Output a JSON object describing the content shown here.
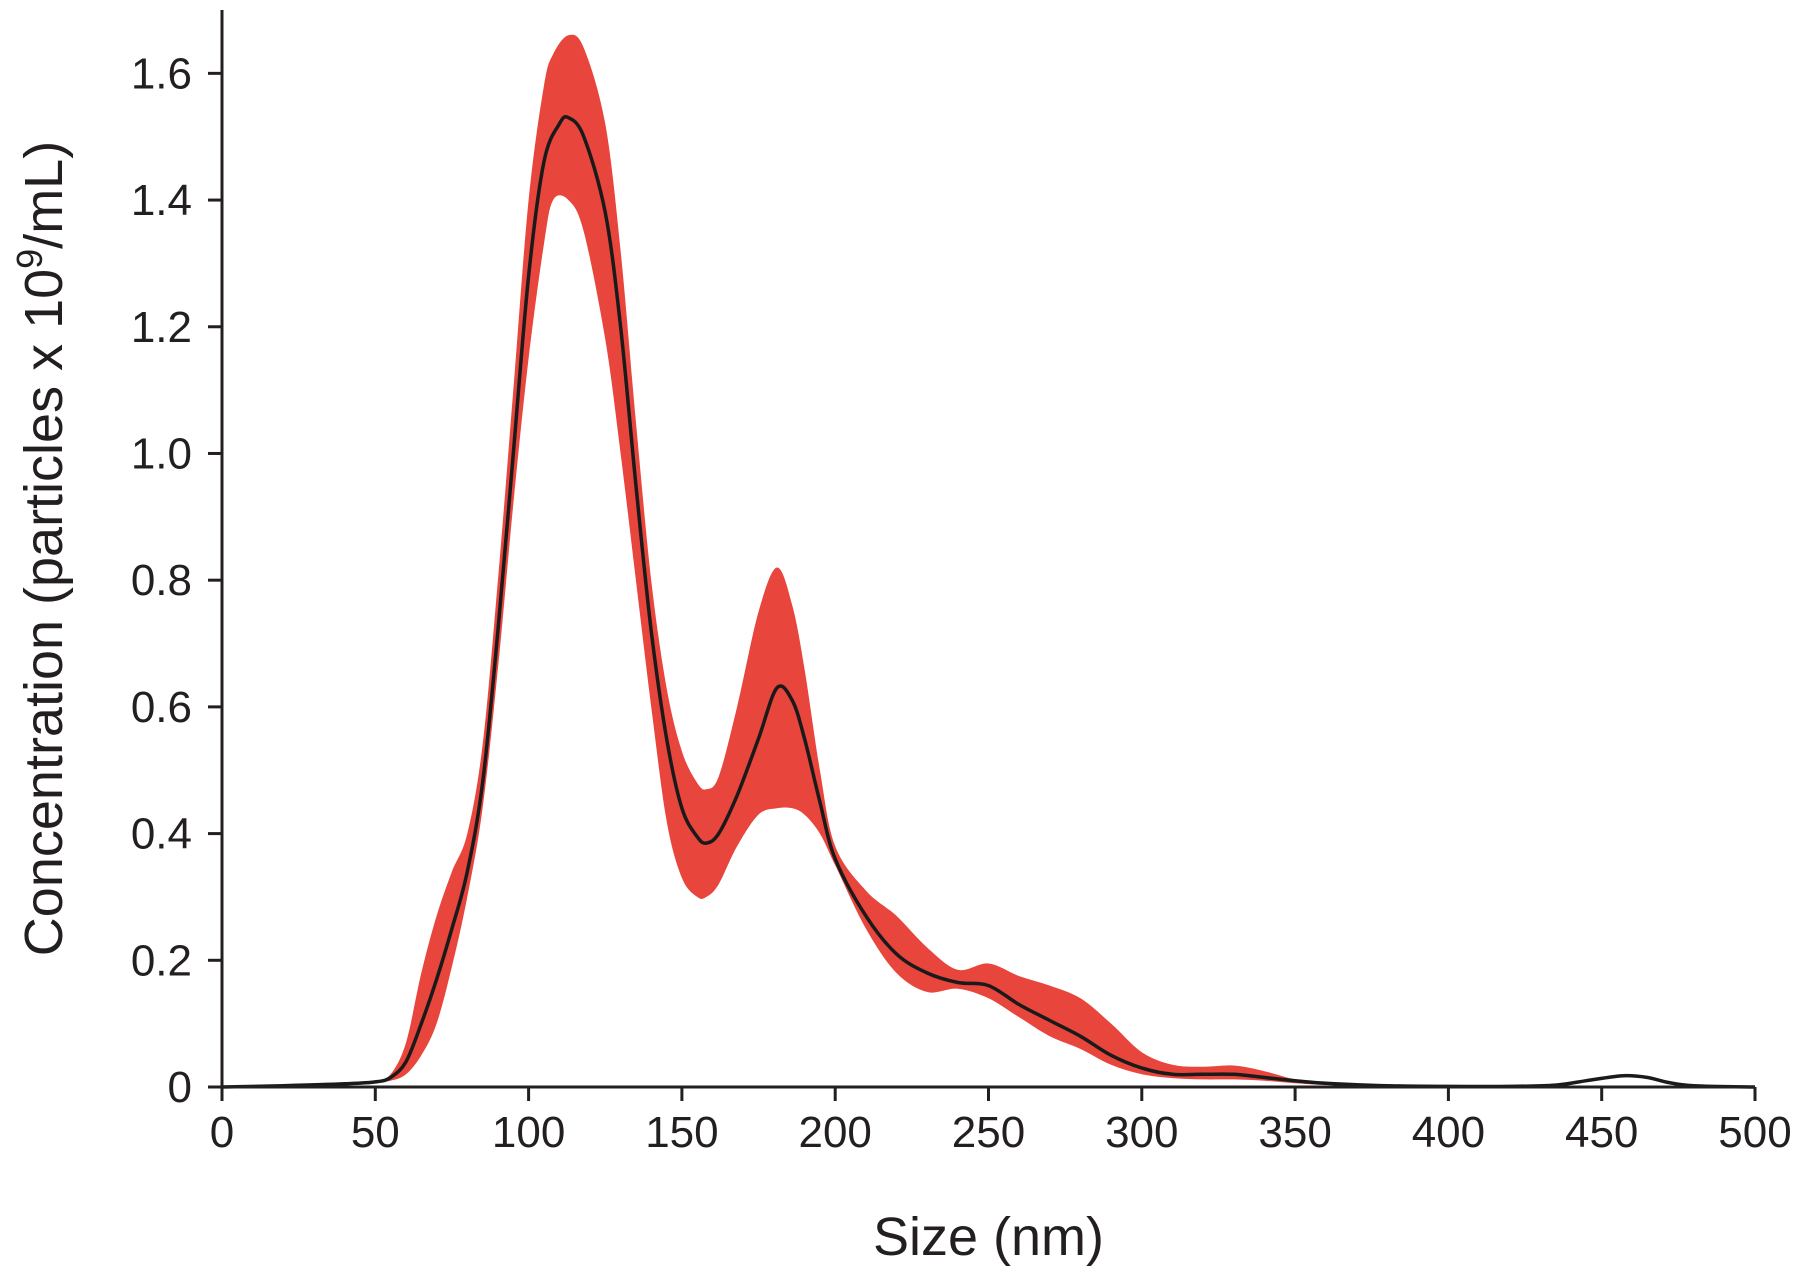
{
  "chart_data": {
    "type": "line",
    "title": "",
    "xlabel": "Size (nm)",
    "ylabel_main": "Concentration (particles x 10",
    "ylabel_sup": "9",
    "ylabel_tail": "/mL)",
    "xlim": [
      0,
      500
    ],
    "ylim": [
      0,
      1.7
    ],
    "x_ticks": [
      0,
      50,
      100,
      150,
      200,
      250,
      300,
      350,
      400,
      450,
      500
    ],
    "x_tick_labels": [
      "0",
      "50",
      "100",
      "150",
      "200",
      "250",
      "300",
      "350",
      "400",
      "450",
      "500"
    ],
    "y_ticks": [
      0,
      0.2,
      0.4,
      0.6,
      0.8,
      1.0,
      1.2,
      1.4,
      1.6
    ],
    "y_tick_labels": [
      "0",
      "0.2",
      "0.4",
      "0.6",
      "0.8",
      "1.0",
      "1.2",
      "1.4",
      "1.6"
    ],
    "grid": false,
    "legend": "none",
    "colors": {
      "band": "#e8453c",
      "mean": "#1a1a1a",
      "axis": "#231f20"
    },
    "series": [
      {
        "kind": "mean",
        "x": [
          0,
          20,
          40,
          50,
          55,
          60,
          65,
          70,
          75,
          80,
          85,
          90,
          95,
          100,
          105,
          110,
          113,
          118,
          125,
          130,
          135,
          140,
          145,
          150,
          155,
          158,
          162,
          168,
          175,
          181,
          186,
          190,
          195,
          200,
          210,
          220,
          230,
          240,
          250,
          260,
          270,
          280,
          290,
          300,
          310,
          320,
          330,
          340,
          350,
          360,
          380,
          400,
          420,
          435,
          445,
          452,
          458,
          465,
          472,
          480,
          500
        ],
        "y": [
          0,
          0.002,
          0.005,
          0.008,
          0.015,
          0.04,
          0.1,
          0.17,
          0.25,
          0.34,
          0.48,
          0.72,
          1.0,
          1.28,
          1.46,
          1.52,
          1.53,
          1.5,
          1.38,
          1.2,
          0.95,
          0.72,
          0.55,
          0.44,
          0.395,
          0.385,
          0.4,
          0.46,
          0.55,
          0.63,
          0.61,
          0.55,
          0.45,
          0.36,
          0.27,
          0.21,
          0.18,
          0.165,
          0.16,
          0.13,
          0.105,
          0.08,
          0.05,
          0.03,
          0.02,
          0.02,
          0.02,
          0.015,
          0.01,
          0.006,
          0.002,
          0.001,
          0.001,
          0.003,
          0.01,
          0.015,
          0.018,
          0.015,
          0.007,
          0.002,
          0
        ]
      },
      {
        "kind": "band",
        "x": [
          50,
          55,
          60,
          65,
          70,
          75,
          80,
          85,
          90,
          95,
          100,
          105,
          108,
          113,
          118,
          125,
          130,
          135,
          140,
          145,
          150,
          155,
          158,
          162,
          168,
          175,
          181,
          186,
          190,
          195,
          200,
          210,
          220,
          230,
          240,
          250,
          260,
          270,
          280,
          290,
          300,
          310,
          320,
          330,
          340,
          350,
          360
        ],
        "upper": [
          0.008,
          0.02,
          0.07,
          0.18,
          0.27,
          0.34,
          0.4,
          0.54,
          0.8,
          1.1,
          1.4,
          1.58,
          1.63,
          1.66,
          1.64,
          1.52,
          1.32,
          1.05,
          0.8,
          0.63,
          0.53,
          0.48,
          0.47,
          0.49,
          0.6,
          0.75,
          0.82,
          0.76,
          0.66,
          0.5,
          0.38,
          0.31,
          0.27,
          0.22,
          0.185,
          0.195,
          0.175,
          0.16,
          0.14,
          0.1,
          0.055,
          0.035,
          0.032,
          0.034,
          0.025,
          0.012,
          0.005
        ],
        "lower": [
          0.008,
          0.01,
          0.02,
          0.05,
          0.1,
          0.19,
          0.3,
          0.44,
          0.66,
          0.92,
          1.15,
          1.33,
          1.4,
          1.4,
          1.35,
          1.18,
          1.0,
          0.8,
          0.6,
          0.42,
          0.33,
          0.3,
          0.3,
          0.32,
          0.38,
          0.43,
          0.44,
          0.44,
          0.43,
          0.4,
          0.35,
          0.25,
          0.18,
          0.15,
          0.155,
          0.14,
          0.11,
          0.08,
          0.06,
          0.035,
          0.02,
          0.014,
          0.012,
          0.012,
          0.01,
          0.006,
          0.003
        ]
      }
    ]
  }
}
